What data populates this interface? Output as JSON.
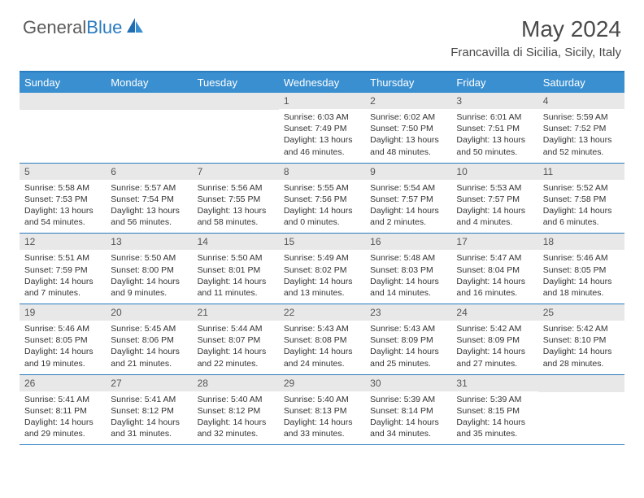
{
  "brand": {
    "part1": "General",
    "part2": "Blue"
  },
  "title": "May 2024",
  "location": "Francavilla di Sicilia, Sicily, Italy",
  "colors": {
    "header_bg": "#3a8fd0",
    "rule": "#2b7bbf",
    "daynum_bg": "#e8e8e8",
    "text": "#333333"
  },
  "weekdays": [
    "Sunday",
    "Monday",
    "Tuesday",
    "Wednesday",
    "Thursday",
    "Friday",
    "Saturday"
  ],
  "weeks": [
    [
      null,
      null,
      null,
      {
        "n": "1",
        "sr": "6:03 AM",
        "ss": "7:49 PM",
        "dl": "13 hours and 46 minutes."
      },
      {
        "n": "2",
        "sr": "6:02 AM",
        "ss": "7:50 PM",
        "dl": "13 hours and 48 minutes."
      },
      {
        "n": "3",
        "sr": "6:01 AM",
        "ss": "7:51 PM",
        "dl": "13 hours and 50 minutes."
      },
      {
        "n": "4",
        "sr": "5:59 AM",
        "ss": "7:52 PM",
        "dl": "13 hours and 52 minutes."
      }
    ],
    [
      {
        "n": "5",
        "sr": "5:58 AM",
        "ss": "7:53 PM",
        "dl": "13 hours and 54 minutes."
      },
      {
        "n": "6",
        "sr": "5:57 AM",
        "ss": "7:54 PM",
        "dl": "13 hours and 56 minutes."
      },
      {
        "n": "7",
        "sr": "5:56 AM",
        "ss": "7:55 PM",
        "dl": "13 hours and 58 minutes."
      },
      {
        "n": "8",
        "sr": "5:55 AM",
        "ss": "7:56 PM",
        "dl": "14 hours and 0 minutes."
      },
      {
        "n": "9",
        "sr": "5:54 AM",
        "ss": "7:57 PM",
        "dl": "14 hours and 2 minutes."
      },
      {
        "n": "10",
        "sr": "5:53 AM",
        "ss": "7:57 PM",
        "dl": "14 hours and 4 minutes."
      },
      {
        "n": "11",
        "sr": "5:52 AM",
        "ss": "7:58 PM",
        "dl": "14 hours and 6 minutes."
      }
    ],
    [
      {
        "n": "12",
        "sr": "5:51 AM",
        "ss": "7:59 PM",
        "dl": "14 hours and 7 minutes."
      },
      {
        "n": "13",
        "sr": "5:50 AM",
        "ss": "8:00 PM",
        "dl": "14 hours and 9 minutes."
      },
      {
        "n": "14",
        "sr": "5:50 AM",
        "ss": "8:01 PM",
        "dl": "14 hours and 11 minutes."
      },
      {
        "n": "15",
        "sr": "5:49 AM",
        "ss": "8:02 PM",
        "dl": "14 hours and 13 minutes."
      },
      {
        "n": "16",
        "sr": "5:48 AM",
        "ss": "8:03 PM",
        "dl": "14 hours and 14 minutes."
      },
      {
        "n": "17",
        "sr": "5:47 AM",
        "ss": "8:04 PM",
        "dl": "14 hours and 16 minutes."
      },
      {
        "n": "18",
        "sr": "5:46 AM",
        "ss": "8:05 PM",
        "dl": "14 hours and 18 minutes."
      }
    ],
    [
      {
        "n": "19",
        "sr": "5:46 AM",
        "ss": "8:05 PM",
        "dl": "14 hours and 19 minutes."
      },
      {
        "n": "20",
        "sr": "5:45 AM",
        "ss": "8:06 PM",
        "dl": "14 hours and 21 minutes."
      },
      {
        "n": "21",
        "sr": "5:44 AM",
        "ss": "8:07 PM",
        "dl": "14 hours and 22 minutes."
      },
      {
        "n": "22",
        "sr": "5:43 AM",
        "ss": "8:08 PM",
        "dl": "14 hours and 24 minutes."
      },
      {
        "n": "23",
        "sr": "5:43 AM",
        "ss": "8:09 PM",
        "dl": "14 hours and 25 minutes."
      },
      {
        "n": "24",
        "sr": "5:42 AM",
        "ss": "8:09 PM",
        "dl": "14 hours and 27 minutes."
      },
      {
        "n": "25",
        "sr": "5:42 AM",
        "ss": "8:10 PM",
        "dl": "14 hours and 28 minutes."
      }
    ],
    [
      {
        "n": "26",
        "sr": "5:41 AM",
        "ss": "8:11 PM",
        "dl": "14 hours and 29 minutes."
      },
      {
        "n": "27",
        "sr": "5:41 AM",
        "ss": "8:12 PM",
        "dl": "14 hours and 31 minutes."
      },
      {
        "n": "28",
        "sr": "5:40 AM",
        "ss": "8:12 PM",
        "dl": "14 hours and 32 minutes."
      },
      {
        "n": "29",
        "sr": "5:40 AM",
        "ss": "8:13 PM",
        "dl": "14 hours and 33 minutes."
      },
      {
        "n": "30",
        "sr": "5:39 AM",
        "ss": "8:14 PM",
        "dl": "14 hours and 34 minutes."
      },
      {
        "n": "31",
        "sr": "5:39 AM",
        "ss": "8:15 PM",
        "dl": "14 hours and 35 minutes."
      },
      null
    ]
  ],
  "labels": {
    "sunrise": "Sunrise: ",
    "sunset": "Sunset: ",
    "daylight": "Daylight: "
  }
}
